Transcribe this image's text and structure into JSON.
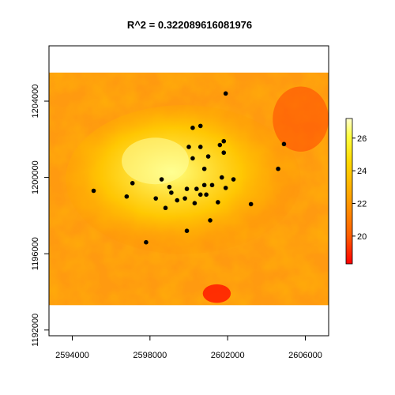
{
  "chart_data": {
    "type": "scatter",
    "title": "R^2 =  0.322089616081976",
    "background": "raster heat map (red → orange → yellow → white) of a continuous surface",
    "x": {
      "lim": [
        2592800,
        2607200
      ],
      "ticks": [
        2594000,
        2598000,
        2602000,
        2606000
      ],
      "tick_labels": [
        "2594000",
        "2598000",
        "2602000",
        "2606000"
      ]
    },
    "y": {
      "lim": [
        1191700,
        1206900
      ],
      "ticks": [
        1192000,
        1196000,
        1200000,
        1204000
      ],
      "tick_labels": [
        "1192000",
        "1196000",
        "1200000",
        "1204000"
      ]
    },
    "raster_extent": {
      "x": [
        2592800,
        2607200
      ],
      "y": [
        1193300,
        1205500
      ]
    },
    "legend": {
      "position": "right",
      "range": [
        18.3,
        27.2
      ],
      "ticks": [
        20,
        22,
        24,
        26
      ],
      "tick_labels": [
        "20",
        "22",
        "24",
        "26"
      ],
      "colors": [
        "#ff0000",
        "#ff6000",
        "#ffa000",
        "#ffd800",
        "#ffff40",
        "#ffffd0"
      ]
    },
    "points": [
      [
        2601900,
        1204400
      ],
      [
        2600200,
        1202600
      ],
      [
        2600600,
        1202700
      ],
      [
        2601800,
        1201900
      ],
      [
        2601600,
        1201700
      ],
      [
        2600000,
        1201600
      ],
      [
        2600600,
        1201600
      ],
      [
        2601000,
        1201100
      ],
      [
        2601800,
        1201300
      ],
      [
        2604900,
        1201750
      ],
      [
        2600200,
        1201000
      ],
      [
        2600800,
        1200450
      ],
      [
        2604600,
        1200450
      ],
      [
        2601700,
        1200000
      ],
      [
        2602300,
        1199900
      ],
      [
        2598600,
        1199900
      ],
      [
        2597100,
        1199700
      ],
      [
        2599000,
        1199500
      ],
      [
        2599900,
        1199400
      ],
      [
        2600400,
        1199400
      ],
      [
        2600800,
        1199600
      ],
      [
        2601200,
        1199600
      ],
      [
        2601900,
        1199450
      ],
      [
        2595100,
        1199300
      ],
      [
        2599100,
        1199200
      ],
      [
        2600600,
        1199100
      ],
      [
        2600900,
        1199100
      ],
      [
        2596800,
        1199000
      ],
      [
        2598300,
        1198900
      ],
      [
        2599800,
        1198900
      ],
      [
        2599400,
        1198800
      ],
      [
        2600300,
        1198650
      ],
      [
        2601500,
        1198700
      ],
      [
        2603200,
        1198600
      ],
      [
        2598800,
        1198400
      ],
      [
        2601100,
        1197750
      ],
      [
        2599900,
        1197200
      ],
      [
        2597800,
        1196600
      ]
    ]
  }
}
